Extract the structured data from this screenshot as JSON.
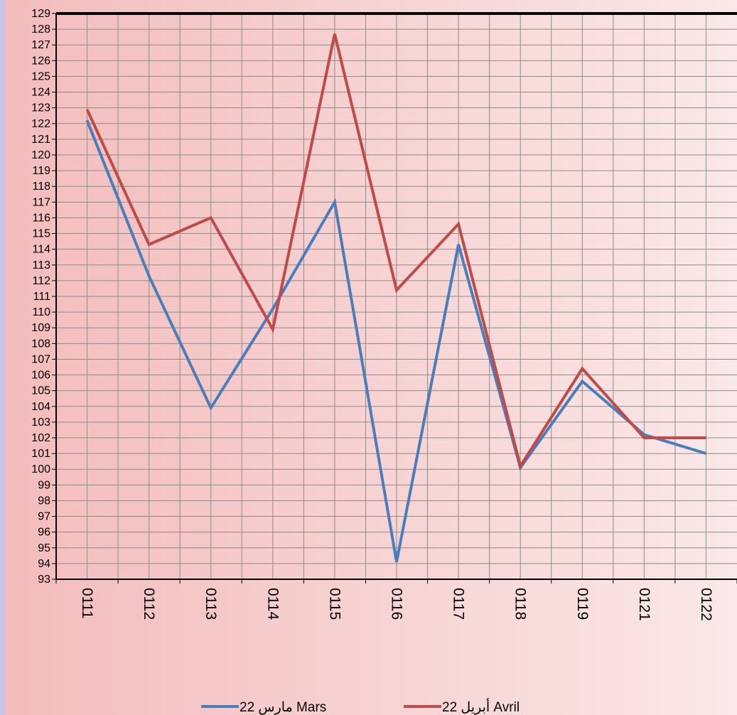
{
  "colors": {
    "mars": "#4a7ebb",
    "avril": "#be4b48",
    "grid": "#8c8c8c",
    "background_left": "#f3bcbc",
    "background_right": "#fbe8e8",
    "strip": "#c9c4e4"
  },
  "legend": {
    "mars_label": "مارس 22 Mars",
    "avril_label": "أبريل 22 Avril"
  },
  "chart_data": {
    "type": "line",
    "title": "",
    "xlabel": "",
    "ylabel": "",
    "categories": [
      "0111",
      "0112",
      "0113",
      "0114",
      "0115",
      "0116",
      "0117",
      "0118",
      "0119",
      "0121",
      "0122"
    ],
    "ylim": [
      93,
      129
    ],
    "ytick_step": 1,
    "grid": true,
    "legend_position": "bottom",
    "series": [
      {
        "name": "مارس 22 Mars",
        "color": "#4a7ebb",
        "values": [
          122.2,
          112.3,
          103.9,
          110.2,
          117.0,
          94.1,
          114.3,
          100.1,
          105.6,
          102.2,
          101.0
        ]
      },
      {
        "name": "أبريل 22 Avril",
        "color": "#be4b48",
        "values": [
          122.9,
          114.3,
          116.0,
          108.9,
          127.7,
          111.4,
          115.6,
          100.2,
          106.4,
          102.0,
          102.0
        ]
      }
    ]
  }
}
